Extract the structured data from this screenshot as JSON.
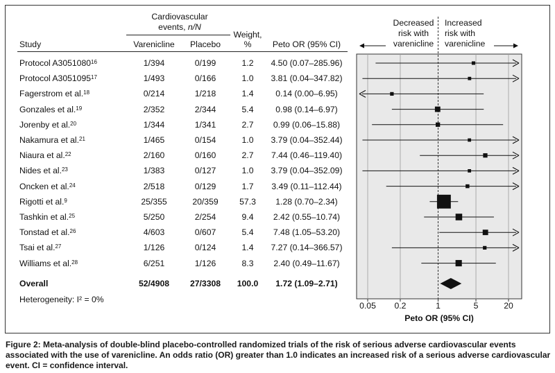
{
  "headers": {
    "study": "Study",
    "events_group": "Cardiovascular",
    "events_sub_pre": "events, ",
    "events_sub_italic": "n/N",
    "varenicline": "Varenicline",
    "placebo": "Placebo",
    "weight_line1": "Weight,",
    "weight_line2": "%",
    "peto": "Peto OR (95% CI)"
  },
  "rows": [
    {
      "study": "Protocol A3051080",
      "ref": "16",
      "varenicline": "1/394",
      "placebo": "0/199",
      "weight": "1.2",
      "or_text": "4.50 (0.07–285.96)"
    },
    {
      "study": "Protocol A3051095",
      "ref": "17",
      "varenicline": "1/493",
      "placebo": "0/166",
      "weight": "1.0",
      "or_text": "3.81 (0.04–347.82)"
    },
    {
      "study": "Fagerstrom et al.",
      "ref": "18",
      "varenicline": "0/214",
      "placebo": "1/218",
      "weight": "1.4",
      "or_text": "0.14 (0.00–6.95)"
    },
    {
      "study": "Gonzales et al.",
      "ref": "19",
      "varenicline": "2/352",
      "placebo": "2/344",
      "weight": "5.4",
      "or_text": "0.98 (0.14–6.97)"
    },
    {
      "study": "Jorenby et al.",
      "ref": "20",
      "varenicline": "1/344",
      "placebo": "1/341",
      "weight": "2.7",
      "or_text": "0.99 (0.06–15.88)"
    },
    {
      "study": "Nakamura et al.",
      "ref": "21",
      "varenicline": "1/465",
      "placebo": "0/154",
      "weight": "1.0",
      "or_text": "3.79 (0.04–352.44)"
    },
    {
      "study": "Niaura et al.",
      "ref": "22",
      "varenicline": "2/160",
      "placebo": "0/160",
      "weight": "2.7",
      "or_text": "7.44 (0.46–119.40)"
    },
    {
      "study": "Nides et al.",
      "ref": "23",
      "varenicline": "1/383",
      "placebo": "0/127",
      "weight": "1.0",
      "or_text": "3.79 (0.04–352.09)"
    },
    {
      "study": "Oncken et al.",
      "ref": "24",
      "varenicline": "2/518",
      "placebo": "0/129",
      "weight": "1.7",
      "or_text": "3.49 (0.11–112.44)"
    },
    {
      "study": "Rigotti et al.",
      "ref": "9",
      "varenicline": "25/355",
      "placebo": "20/359",
      "weight": "57.3",
      "or_text": "1.28 (0.70–2.34)"
    },
    {
      "study": "Tashkin et al.",
      "ref": "25",
      "varenicline": "5/250",
      "placebo": "2/254",
      "weight": "9.4",
      "or_text": "2.42 (0.55–10.74)"
    },
    {
      "study": "Tonstad et al.",
      "ref": "26",
      "varenicline": "4/603",
      "placebo": "0/607",
      "weight": "5.4",
      "or_text": "7.48 (1.05–53.20)"
    },
    {
      "study": "Tsai et al.",
      "ref": "27",
      "varenicline": "1/126",
      "placebo": "0/124",
      "weight": "1.4",
      "or_text": "7.27 (0.14–366.57)"
    },
    {
      "study": "Williams et al.",
      "ref": "28",
      "varenicline": "6/251",
      "placebo": "1/126",
      "weight": "8.3",
      "or_text": "2.40 (0.49–11.67)"
    }
  ],
  "overall": {
    "label": "Overall",
    "varenicline": "52/4908",
    "placebo": "27/3308",
    "weight": "100.0",
    "or_text": "1.72 (1.09–2.71)"
  },
  "heterogeneity": {
    "text": "Heterogeneity: ",
    "i2": "I² = 0%"
  },
  "plot_labels": {
    "decreased_l1": "Decreased",
    "decreased_l2": "risk with",
    "decreased_l3": "varenicline",
    "increased_l1": "Increased",
    "increased_l2": "risk with",
    "increased_l3": "varenicline"
  },
  "caption": "Figure 2: Meta-analysis of double-blind placebo-controlled randomized trials of the risk of serious adverse cardiovascular events associated with the use of varenicline. An odds ratio (OR) greater than 1.0 indicates an increased risk of a serious adverse cardiovascular event. CI = confidence interval.",
  "chart_data": {
    "type": "forest",
    "scale": "log",
    "xlabel": "Peto OR (95% CI)",
    "xlim": [
      0.025,
      30
    ],
    "xticks": [
      0.05,
      0.2,
      1,
      5,
      20
    ],
    "xtick_labels": [
      "0.05",
      "0.2",
      "1",
      "5",
      "20"
    ],
    "reference_line": 1,
    "grid": true,
    "studies": [
      {
        "or": 4.5,
        "lo": 0.07,
        "hi": 285.96,
        "weight": 1.2
      },
      {
        "or": 3.81,
        "lo": 0.04,
        "hi": 347.82,
        "weight": 1.0
      },
      {
        "or": 0.14,
        "lo": 0.0,
        "hi": 6.95,
        "weight": 1.4
      },
      {
        "or": 0.98,
        "lo": 0.14,
        "hi": 6.97,
        "weight": 5.4
      },
      {
        "or": 0.99,
        "lo": 0.06,
        "hi": 15.88,
        "weight": 2.7
      },
      {
        "or": 3.79,
        "lo": 0.04,
        "hi": 352.44,
        "weight": 1.0
      },
      {
        "or": 7.44,
        "lo": 0.46,
        "hi": 119.4,
        "weight": 2.7
      },
      {
        "or": 3.79,
        "lo": 0.04,
        "hi": 352.09,
        "weight": 1.0
      },
      {
        "or": 3.49,
        "lo": 0.11,
        "hi": 112.44,
        "weight": 1.7
      },
      {
        "or": 1.28,
        "lo": 0.7,
        "hi": 2.34,
        "weight": 57.3
      },
      {
        "or": 2.42,
        "lo": 0.55,
        "hi": 10.74,
        "weight": 9.4
      },
      {
        "or": 7.48,
        "lo": 1.05,
        "hi": 53.2,
        "weight": 5.4
      },
      {
        "or": 7.27,
        "lo": 0.14,
        "hi": 366.57,
        "weight": 1.4
      },
      {
        "or": 2.4,
        "lo": 0.49,
        "hi": 11.67,
        "weight": 8.3
      }
    ],
    "overall": {
      "or": 1.72,
      "lo": 1.09,
      "hi": 2.71
    }
  }
}
